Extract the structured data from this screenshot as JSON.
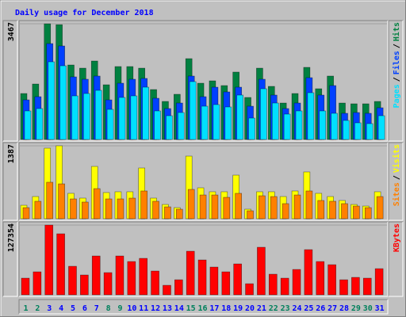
{
  "chart_data": [
    {
      "type": "bar",
      "title": "Daily usage for December 2018",
      "ylim": [
        0,
        3467
      ],
      "yticks": [
        3467
      ],
      "legend_separator": "/",
      "series": [
        {
          "name": "Hits",
          "color": "#008040",
          "values": [
            1377,
            1662,
            3467,
            3440,
            2232,
            2137,
            2351,
            1639,
            2185,
            2185,
            2137,
            1496,
            1140,
            1354,
            2422,
            1686,
            1757,
            1615,
            2019,
            1259,
            2137,
            1591,
            1092,
            1377,
            2161,
            1520,
            1900,
            1092,
            1069,
            1069,
            1140
          ]
        },
        {
          "name": "Files",
          "color": "#0040ff",
          "values": [
            1187,
            1282,
            2873,
            2802,
            1876,
            1805,
            1900,
            1187,
            1686,
            1805,
            1829,
            1235,
            926,
            1092,
            1900,
            1282,
            1567,
            1425,
            1567,
            997,
            1805,
            1330,
            926,
            1092,
            1852,
            1330,
            1615,
            784,
            807,
            784,
            950
          ]
        },
        {
          "name": "Pages",
          "color": "#00e0ff",
          "values": [
            855,
            926,
            2327,
            2208,
            1306,
            1377,
            1472,
            902,
            1259,
            1306,
            1567,
            855,
            712,
            807,
            1734,
            997,
            1045,
            974,
            1330,
            641,
            1520,
            1092,
            760,
            855,
            1401,
            855,
            784,
            570,
            499,
            475,
            712
          ]
        }
      ]
    },
    {
      "type": "bar",
      "ylim": [
        0,
        1387
      ],
      "yticks": [
        1387
      ],
      "legend_separator": "/",
      "series": [
        {
          "name": "Visits",
          "color": "#ffff00",
          "values": [
            256,
            422,
            1342,
            1387,
            483,
            392,
            995,
            498,
            513,
            513,
            965,
            392,
            271,
            211,
            1191,
            588,
            513,
            513,
            829,
            181,
            513,
            513,
            422,
            528,
            890,
            483,
            422,
            347,
            271,
            241,
            513
          ]
        },
        {
          "name": "Sites",
          "color": "#ff8000",
          "values": [
            211,
            332,
            694,
            663,
            377,
            317,
            573,
            377,
            377,
            392,
            528,
            332,
            226,
            181,
            558,
            452,
            452,
            407,
            483,
            151,
            437,
            422,
            287,
            452,
            528,
            347,
            332,
            287,
            241,
            211,
            422
          ]
        }
      ]
    },
    {
      "type": "bar",
      "ylim": [
        0,
        127354
      ],
      "yticks": [
        127354
      ],
      "categories": [
        "1",
        "2",
        "3",
        "4",
        "5",
        "6",
        "7",
        "8",
        "9",
        "10",
        "11",
        "12",
        "13",
        "14",
        "15",
        "16",
        "17",
        "18",
        "19",
        "20",
        "21",
        "22",
        "23",
        "24",
        "25",
        "26",
        "27",
        "28",
        "29",
        "30",
        "31"
      ],
      "label_colors": [
        "#00805c",
        "#00805c",
        "#0000ff",
        "#0000ff",
        "#0000ff",
        "#0000ff",
        "#0000ff",
        "#00805c",
        "#00805c",
        "#0000ff",
        "#0000ff",
        "#0000ff",
        "#0000ff",
        "#0000ff",
        "#00805c",
        "#00805c",
        "#0000ff",
        "#0000ff",
        "#0000ff",
        "#0000ff",
        "#0000ff",
        "#00805c",
        "#00805c",
        "#0000ff",
        "#0000ff",
        "#0000ff",
        "#0000ff",
        "#0000ff",
        "#00805c",
        "#00805c",
        "#0000ff"
      ],
      "series": [
        {
          "name": "KBytes",
          "color": "#ff0000",
          "values": [
            30390,
            41966,
            127354,
            111435,
            52099,
            36181,
            70914,
            40522,
            70914,
            60782,
            66571,
            43417,
            17367,
            27497,
            79597,
            63678,
            50653,
            41969,
            56442,
            20261,
            86833,
            37628,
            30391,
            46311,
            82491,
            60782,
            54994,
            27497,
            31839,
            30391,
            47758
          ]
        }
      ]
    }
  ]
}
